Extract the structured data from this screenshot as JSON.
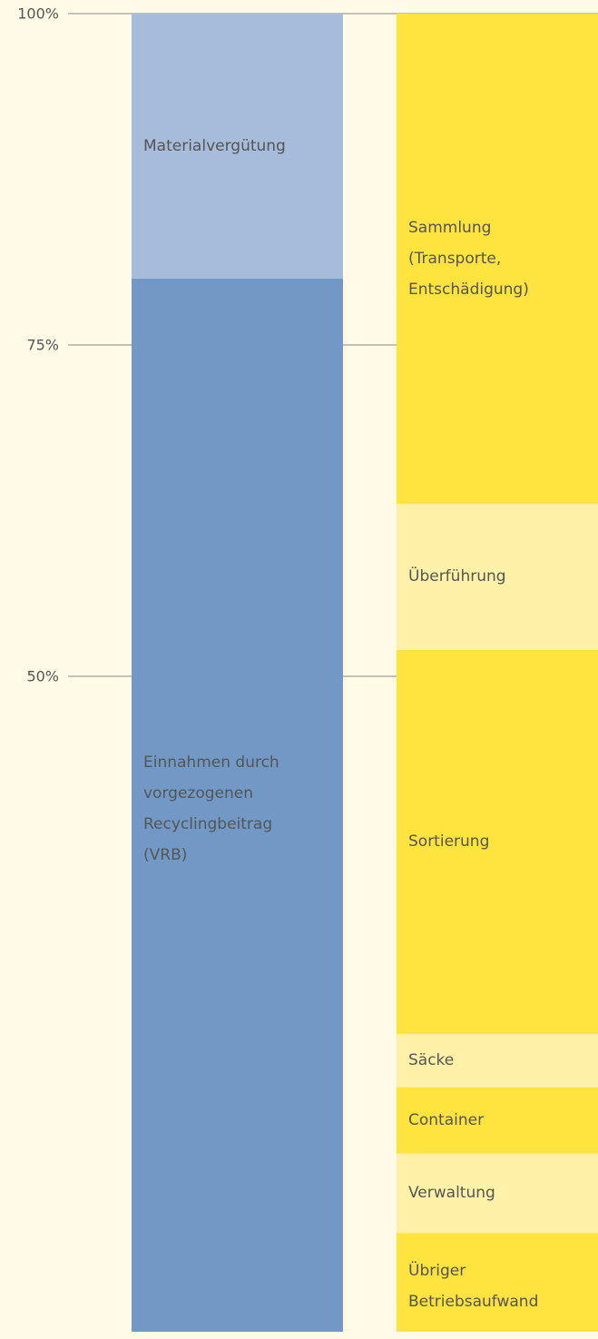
{
  "chart_data": {
    "type": "stacked_bar",
    "ylim": [
      0,
      100
    ],
    "yticks": [
      {
        "value": 50,
        "label": "50%"
      },
      {
        "value": 75,
        "label": "75%"
      },
      {
        "value": 100,
        "label": "100%"
      }
    ],
    "grid": true,
    "columns": [
      {
        "segments": [
          {
            "name": "Einnahmen durch vorgezogenen Recyclingbeitrag (VRB)",
            "value": 80,
            "color": "#7299c6"
          },
          {
            "name": "Materialvergütung",
            "value": 20,
            "color": "#a7bcdb"
          }
        ]
      },
      {
        "segments": [
          {
            "name": "Übriger Betriebsaufwand",
            "value": 8,
            "color": "#ffe33f"
          },
          {
            "name": "Verwaltung",
            "value": 6,
            "color": "#fff2a8"
          },
          {
            "name": "Container",
            "value": 5,
            "color": "#ffe33f"
          },
          {
            "name": "Säcke",
            "value": 4,
            "color": "#fff2a8"
          },
          {
            "name": "Sortierung",
            "value": 29,
            "color": "#ffe33f"
          },
          {
            "name": "Überführung",
            "value": 11,
            "color": "#fff2a8"
          },
          {
            "name": "Sammlung (Transporte, Entschädigung)",
            "value": 37,
            "color": "#ffe33f"
          }
        ]
      }
    ]
  }
}
